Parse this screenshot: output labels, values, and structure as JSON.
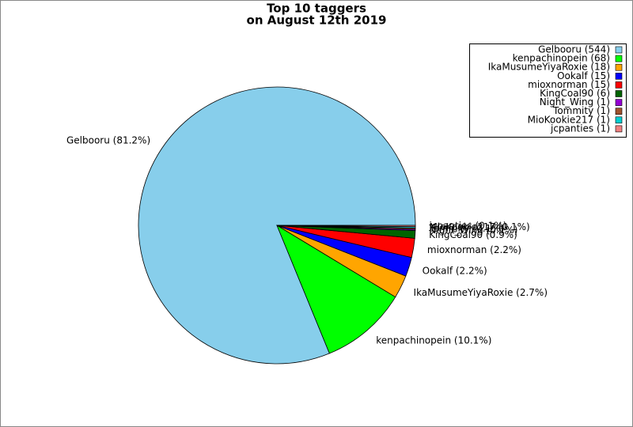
{
  "chart_data": {
    "type": "pie",
    "title": "Top 10 taggers",
    "subtitle": "on August 12th 2019",
    "values": [
      544,
      68,
      18,
      15,
      15,
      6,
      1,
      1,
      1,
      1
    ],
    "colors": [
      "#87ceeb",
      "#00ff00",
      "#ffa500",
      "#0000ff",
      "#ff0000",
      "#006400",
      "#9400d3",
      "#a0522d",
      "#00ced1",
      "#f08080"
    ],
    "legend_labels": [
      "Gelbooru (544)",
      "kenpachinopein (68)",
      "IkaMusumeYiyaRoxie (18)",
      "Ookalf (15)",
      "mioxnorman (15)",
      "KingCoal90 (6)",
      "Night_Wing (1)",
      "Tommity (1)",
      "MioKookie217 (1)",
      "jcpanties (1)"
    ],
    "slice_labels": [
      "Gelbooru (81.2%)",
      "kenpachinopein (10.1%)",
      "IkaMusumeYiyaRoxie (2.7%)",
      "Ookalf (2.2%)",
      "mioxnorman (2.2%)",
      "KingCoal90 (0.9%)",
      "Night_Wing (0.1%)",
      "Tommity (0.1%)",
      "MioKookie217 (0.1%)",
      "jcpanties (0.1%)"
    ],
    "legend": "upper right"
  }
}
